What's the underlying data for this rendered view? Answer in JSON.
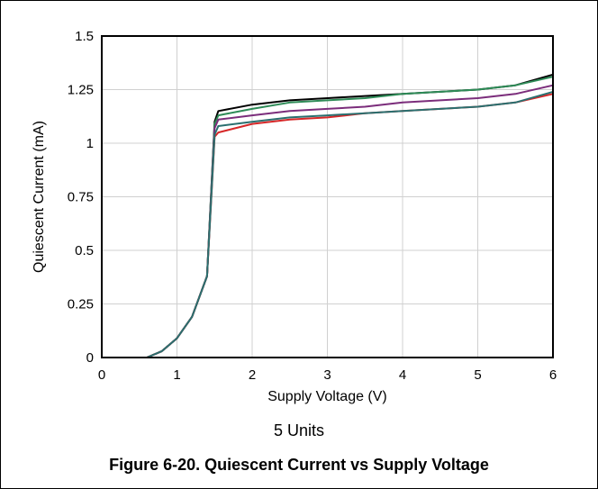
{
  "caption": "5 Units",
  "figure_title": "Figure 6-20. Quiescent Current vs Supply Voltage",
  "chart_data": {
    "type": "line",
    "xlabel": "Supply Voltage (V)",
    "ylabel": "Quiescent Current (mA)",
    "xlim": [
      0,
      6
    ],
    "ylim": [
      0,
      1.5
    ],
    "x_ticks": [
      0,
      1,
      2,
      3,
      4,
      5,
      6
    ],
    "y_ticks": [
      0,
      0.25,
      0.5,
      0.75,
      1,
      1.25,
      1.5
    ],
    "x_tick_labels": [
      "0",
      "1",
      "2",
      "3",
      "4",
      "5",
      "6"
    ],
    "y_tick_labels": [
      "0",
      "0.25",
      "0.5",
      "0.75",
      "1",
      "1.25",
      "1.5"
    ],
    "grid": true,
    "legend": "none",
    "series": [
      {
        "color": "#000000",
        "points": [
          [
            0.2,
            0
          ],
          [
            0.6,
            0
          ],
          [
            0.8,
            0.03
          ],
          [
            1.0,
            0.09
          ],
          [
            1.2,
            0.19
          ],
          [
            1.4,
            0.38
          ],
          [
            1.5,
            1.1
          ],
          [
            1.55,
            1.15
          ],
          [
            2.0,
            1.18
          ],
          [
            2.5,
            1.2
          ],
          [
            3.0,
            1.21
          ],
          [
            3.5,
            1.22
          ],
          [
            4.0,
            1.23
          ],
          [
            4.5,
            1.24
          ],
          [
            5.0,
            1.25
          ],
          [
            5.5,
            1.27
          ],
          [
            6.0,
            1.32
          ]
        ]
      },
      {
        "color": "#2e8b57",
        "points": [
          [
            0.2,
            0
          ],
          [
            0.6,
            0
          ],
          [
            0.8,
            0.03
          ],
          [
            1.0,
            0.09
          ],
          [
            1.2,
            0.19
          ],
          [
            1.4,
            0.38
          ],
          [
            1.5,
            1.09
          ],
          [
            1.55,
            1.13
          ],
          [
            2.0,
            1.16
          ],
          [
            2.5,
            1.19
          ],
          [
            3.0,
            1.2
          ],
          [
            3.5,
            1.21
          ],
          [
            4.0,
            1.23
          ],
          [
            4.5,
            1.24
          ],
          [
            5.0,
            1.25
          ],
          [
            5.5,
            1.27
          ],
          [
            6.0,
            1.31
          ]
        ]
      },
      {
        "color": "#7b2d7b",
        "points": [
          [
            0.2,
            0
          ],
          [
            0.6,
            0
          ],
          [
            0.8,
            0.03
          ],
          [
            1.0,
            0.09
          ],
          [
            1.2,
            0.19
          ],
          [
            1.4,
            0.38
          ],
          [
            1.5,
            1.07
          ],
          [
            1.55,
            1.11
          ],
          [
            2.0,
            1.13
          ],
          [
            2.5,
            1.15
          ],
          [
            3.0,
            1.16
          ],
          [
            3.5,
            1.17
          ],
          [
            4.0,
            1.19
          ],
          [
            4.5,
            1.2
          ],
          [
            5.0,
            1.21
          ],
          [
            5.5,
            1.23
          ],
          [
            6.0,
            1.27
          ]
        ]
      },
      {
        "color": "#d62728",
        "points": [
          [
            0.2,
            0
          ],
          [
            0.6,
            0
          ],
          [
            0.8,
            0.03
          ],
          [
            1.0,
            0.09
          ],
          [
            1.2,
            0.19
          ],
          [
            1.4,
            0.38
          ],
          [
            1.5,
            1.03
          ],
          [
            1.55,
            1.05
          ],
          [
            2.0,
            1.09
          ],
          [
            2.5,
            1.11
          ],
          [
            3.0,
            1.12
          ],
          [
            3.5,
            1.14
          ],
          [
            4.0,
            1.15
          ],
          [
            4.5,
            1.16
          ],
          [
            5.0,
            1.17
          ],
          [
            5.5,
            1.19
          ],
          [
            6.0,
            1.23
          ]
        ]
      },
      {
        "color": "#2a6f6f",
        "points": [
          [
            0.2,
            0
          ],
          [
            0.6,
            0
          ],
          [
            0.8,
            0.03
          ],
          [
            1.0,
            0.09
          ],
          [
            1.2,
            0.19
          ],
          [
            1.4,
            0.38
          ],
          [
            1.5,
            1.04
          ],
          [
            1.55,
            1.08
          ],
          [
            2.0,
            1.1
          ],
          [
            2.5,
            1.12
          ],
          [
            3.0,
            1.13
          ],
          [
            3.5,
            1.14
          ],
          [
            4.0,
            1.15
          ],
          [
            4.5,
            1.16
          ],
          [
            5.0,
            1.17
          ],
          [
            5.5,
            1.19
          ],
          [
            6.0,
            1.24
          ]
        ]
      }
    ]
  }
}
